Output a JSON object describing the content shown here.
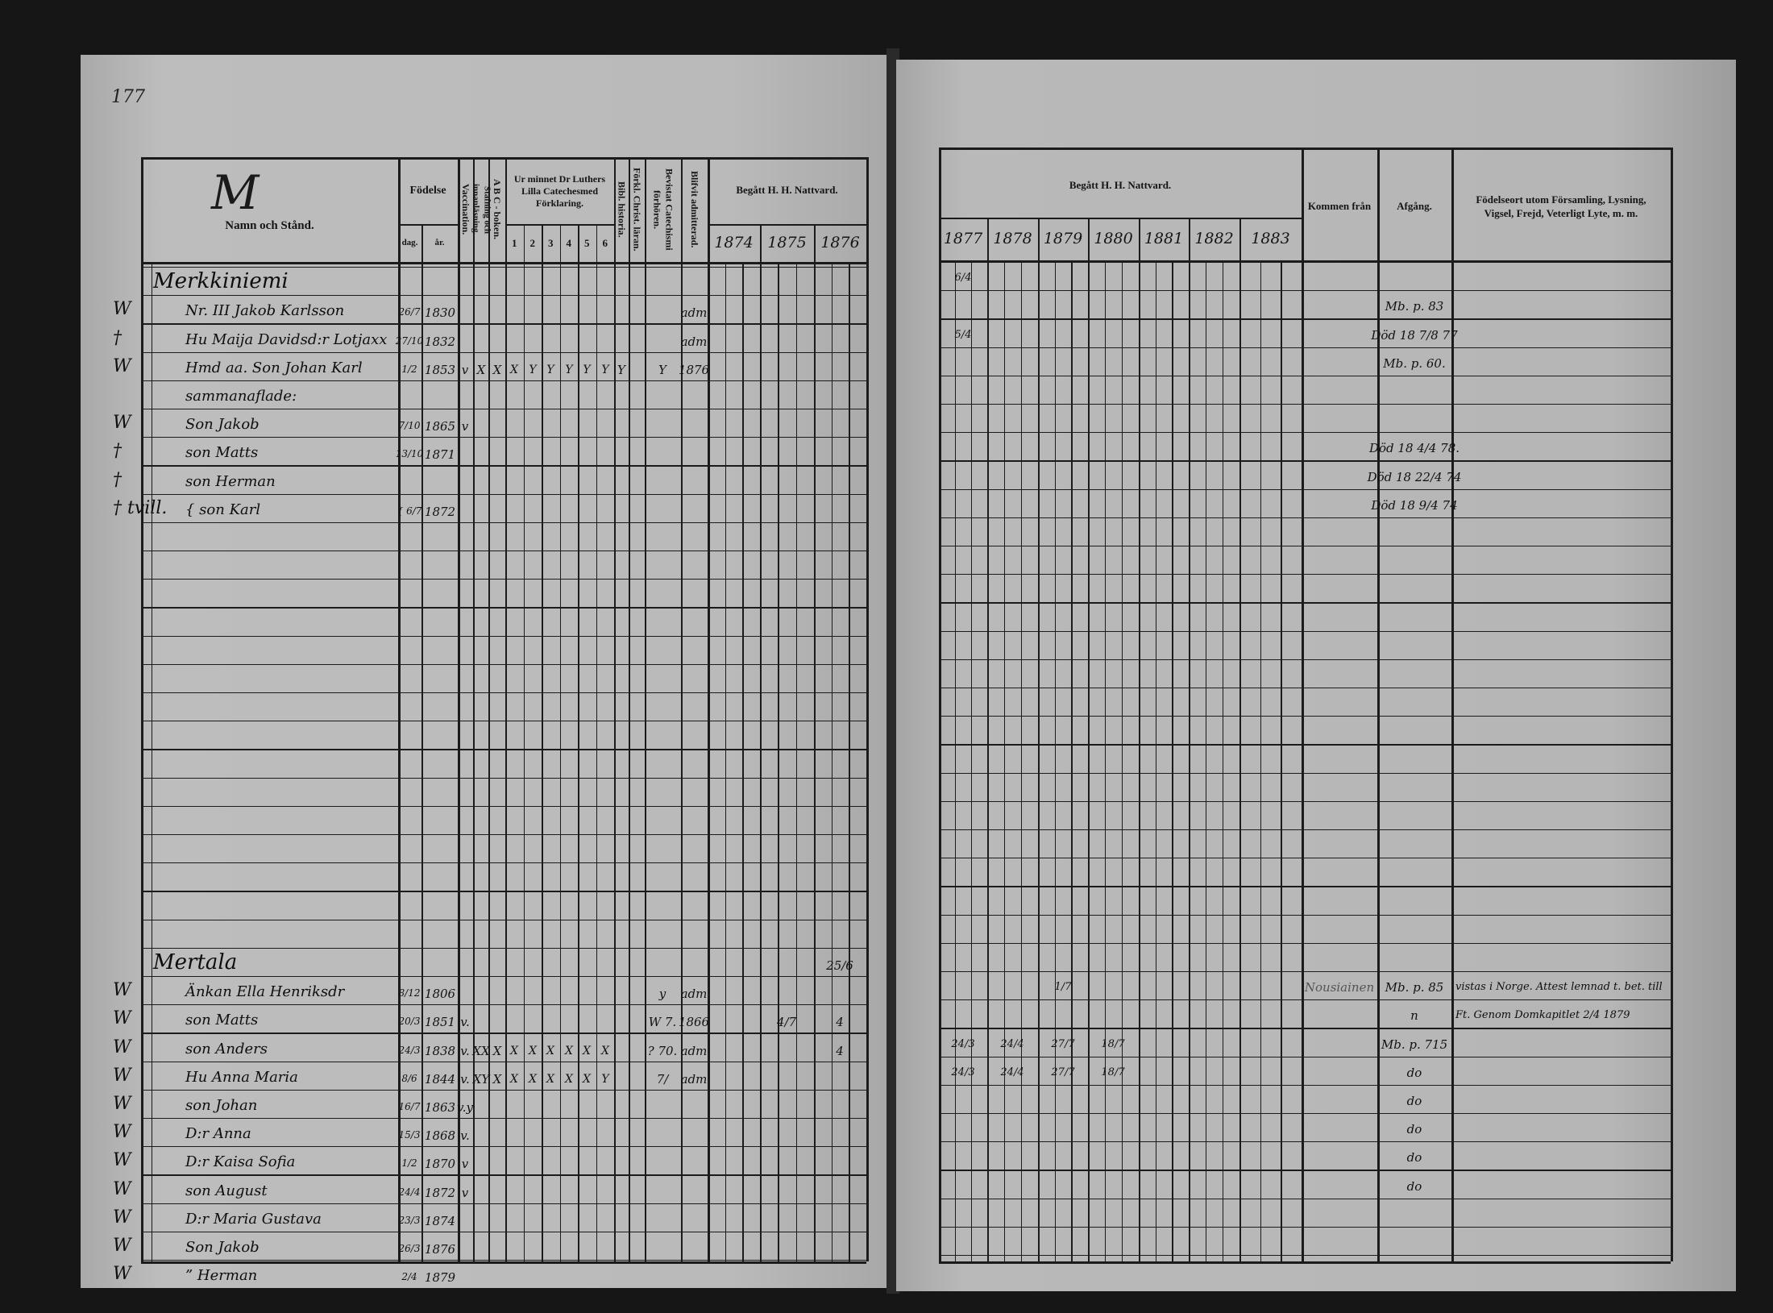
{
  "page_number": "177",
  "left": {
    "letter": "M",
    "headers": {
      "name": "Namn och Stånd.",
      "birth": "Födelse",
      "day": "dag.",
      "year": "år.",
      "vaccination": "Vaccination.",
      "reading": "Stafning och innanläsning.",
      "abc": "A B C - boken.",
      "catechism": "Ur minnet Dr Luthers Lilla Catechesmed Förklaring.",
      "catechism_parts": [
        "1",
        "2",
        "3",
        "4",
        "5",
        "6"
      ],
      "bible": "Bibl. historia.",
      "christ": "Förkl. Christ. läran.",
      "hearings": "Bevistat Catechismi förhören.",
      "admitted": "Blifvit admitterad.",
      "communion": "Begått H. H. Nattvard.",
      "years": [
        "1874",
        "1875",
        "1876"
      ]
    },
    "rows": [
      {
        "slot": 1,
        "name": "Merkkiniemi",
        "heading": true
      },
      {
        "slot": 2,
        "mark": "W",
        "name": "Nr. III  Jakob Karlsson",
        "day": "26/7",
        "year": "1830",
        "blifvit": "adm"
      },
      {
        "slot": 3,
        "mark": "†",
        "name": "Hu Maija Davidsd:r Lotjaxx",
        "day": "27/10",
        "year": "1832",
        "blifvit": "adm"
      },
      {
        "slot": 4,
        "mark": "W",
        "name": "Hmd aa. Son Johan Karl",
        "day": "1/2",
        "year": "1853",
        "vacc": "v",
        "staf": "X",
        "abc": "X",
        "cat": [
          "X",
          "Y",
          "Y",
          "Y",
          "Y",
          "Y"
        ],
        "bibl": "Y",
        "bevistat": "Y",
        "blifvit": "1876"
      },
      {
        "slot": 5,
        "name": "sammanaflade:"
      },
      {
        "slot": 6,
        "mark": "W",
        "name": "Son Jakob",
        "day": "7/10",
        "year": "1865",
        "vacc": "v"
      },
      {
        "slot": 7,
        "mark": "†",
        "name": "son Matts",
        "day": "13/10",
        "year": "1871"
      },
      {
        "slot": 8,
        "mark": "†",
        "name": "son Herman"
      },
      {
        "slot": 9,
        "mark": "† tvill.",
        "name": "{ son Karl",
        "day": "{ 6/7",
        "year": "1872"
      },
      {
        "slot": 25,
        "name": "Mertala",
        "heading": true,
        "y1876": "25/6"
      },
      {
        "slot": 26,
        "mark": "W",
        "name": "Änkan Ella Henriksdr",
        "day": "8/12",
        "year": "1806",
        "bevistat": "y",
        "blifvit": "adm"
      },
      {
        "slot": 27,
        "mark": "W",
        "name": "son Matts",
        "day": "20/3",
        "year": "1851",
        "vacc": "v.",
        "bevistat": "W 7.",
        "blifvit": "1866",
        "y1875": "4/7",
        "y1876": "4"
      },
      {
        "slot": 28,
        "mark": "W",
        "name": "son Anders",
        "day": "24/3",
        "year": "1838",
        "vacc": "v.",
        "staf": "XX",
        "abc": "X",
        "cat": [
          "X",
          "X",
          "X",
          "X",
          "X",
          "X"
        ],
        "bevistat": "? 70.",
        "blifvit": "adm",
        "y1876": "4"
      },
      {
        "slot": 29,
        "mark": "W",
        "name": "Hu Anna Maria",
        "day": "8/6",
        "year": "1844",
        "vacc": "v.",
        "staf": "XY",
        "abc": "X",
        "cat": [
          "X",
          "X",
          "X",
          "X",
          "X",
          "Y"
        ],
        "bevistat": "7/",
        "blifvit": "adm"
      },
      {
        "slot": 30,
        "mark": "W",
        "name": "son Johan",
        "day": "16/7",
        "year": "1863",
        "vacc": "v.y"
      },
      {
        "slot": 31,
        "mark": "W",
        "name": "D:r Anna",
        "day": "15/3",
        "year": "1868",
        "vacc": "v."
      },
      {
        "slot": 32,
        "mark": "W",
        "name": "D:r Kaisa Sofia",
        "day": "1/2",
        "year": "1870",
        "vacc": "v"
      },
      {
        "slot": 33,
        "mark": "W",
        "name": "son August",
        "day": "24/4",
        "year": "1872",
        "vacc": "v"
      },
      {
        "slot": 34,
        "mark": "W",
        "name": "D:r Maria Gustava",
        "day": "23/3",
        "year": "1874"
      },
      {
        "slot": 35,
        "mark": "W",
        "name": "Son Jakob",
        "day": "26/3",
        "year": "1876"
      },
      {
        "slot": 36,
        "mark": "W",
        "name": "” Herman",
        "day": "2/4",
        "year": "1879"
      }
    ]
  },
  "right": {
    "headers": {
      "communion": "Begått H. H. Nattvard.",
      "years": [
        "1877",
        "1878",
        "1879",
        "1880",
        "1881",
        "1882",
        "1883"
      ],
      "from": "Kommen från",
      "departure": "Afgång.",
      "notes": "Födelseort utom Församling, Lysning, Vigsel, Frejd, Veterligt Lyte, m. m."
    },
    "rows": [
      {
        "slot": 1,
        "y1877": "6/4"
      },
      {
        "slot": 2,
        "afgang": "Mb. p. 83"
      },
      {
        "slot": 3,
        "y1877": "5/4",
        "afgang": "Död 18 7/8 77"
      },
      {
        "slot": 4,
        "afgang": "Mb. p. 60."
      },
      {
        "slot": 7,
        "afgang": "Död 18 4/4 78."
      },
      {
        "slot": 8,
        "afgang": "Död 18 22/4 74"
      },
      {
        "slot": 9,
        "afgang": "Död 18 9/4 74"
      },
      {
        "slot": 26,
        "y1879": "1/7",
        "kommen": "Nousiainen",
        "afgang": "Mb. p. 85",
        "notes": "vistas i Norge. Attest lemnad t. bet. till"
      },
      {
        "slot": 27,
        "afgang": "n",
        "notes": "Ft. Genom Domkapitlet 2/4 1879"
      },
      {
        "slot": 28,
        "y1877": "24/3",
        "y1878": "24/4",
        "y1879": "27/7",
        "y1880": "18/7",
        "afgang": "Mb. p. 715"
      },
      {
        "slot": 29,
        "y1877": "24/3",
        "y1878": "24/4",
        "y1879": "27/7",
        "y1880": "18/7",
        "afgang": "do"
      },
      {
        "slot": 30,
        "afgang": "do"
      },
      {
        "slot": 31,
        "afgang": "do"
      },
      {
        "slot": 32,
        "afgang": "do"
      },
      {
        "slot": 33,
        "afgang": "do"
      }
    ]
  },
  "colors": {
    "background": "#161616",
    "paper": "#b8b8b8",
    "ink": "#111111"
  }
}
